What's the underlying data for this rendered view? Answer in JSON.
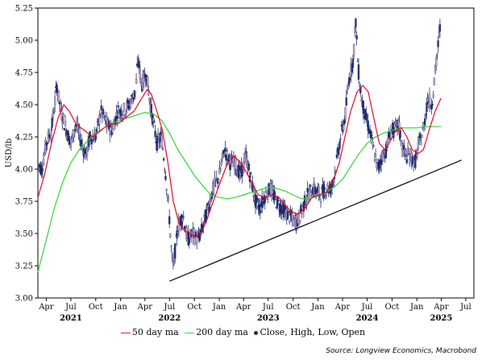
{
  "chart_data": {
    "type": "line",
    "ylabel": "USD/lb",
    "ylim": [
      3.0,
      5.25
    ],
    "yticks": [
      "3.00",
      "3.25",
      "3.50",
      "3.75",
      "4.00",
      "4.25",
      "4.50",
      "4.75",
      "5.00",
      "5.25"
    ],
    "xlim": [
      "2021-03-01",
      "2025-07-31"
    ],
    "xticks": [
      {
        "date": "2021-04-01",
        "label": "Apr"
      },
      {
        "date": "2021-07-01",
        "label": "Jul"
      },
      {
        "date": "2021-10-01",
        "label": "Oct"
      },
      {
        "date": "2022-01-01",
        "label": "Jan"
      },
      {
        "date": "2022-04-01",
        "label": "Apr"
      },
      {
        "date": "2022-07-01",
        "label": "Jul"
      },
      {
        "date": "2022-10-01",
        "label": "Oct"
      },
      {
        "date": "2023-01-01",
        "label": "Jan"
      },
      {
        "date": "2023-04-01",
        "label": "Apr"
      },
      {
        "date": "2023-07-01",
        "label": "Jul"
      },
      {
        "date": "2023-10-01",
        "label": "Oct"
      },
      {
        "date": "2024-01-01",
        "label": "Jan"
      },
      {
        "date": "2024-04-01",
        "label": "Apr"
      },
      {
        "date": "2024-07-01",
        "label": "Jul"
      },
      {
        "date": "2024-10-01",
        "label": "Oct"
      },
      {
        "date": "2025-01-01",
        "label": "Jan"
      },
      {
        "date": "2025-04-01",
        "label": "Apr"
      },
      {
        "date": "2025-07-01",
        "label": "Jul"
      }
    ],
    "years": [
      {
        "date": "2021-07-01",
        "label": "2021"
      },
      {
        "date": "2022-07-01",
        "label": "2022"
      },
      {
        "date": "2023-07-01",
        "label": "2023"
      },
      {
        "date": "2024-07-01",
        "label": "2024"
      },
      {
        "date": "2025-04-01",
        "label": "2025"
      }
    ],
    "price_path": [
      [
        "2021-03-01",
        4.05
      ],
      [
        "2021-03-15",
        4.0
      ],
      [
        "2021-04-01",
        4.2
      ],
      [
        "2021-04-20",
        4.3
      ],
      [
        "2021-05-10",
        4.65
      ],
      [
        "2021-05-25",
        4.45
      ],
      [
        "2021-06-15",
        4.3
      ],
      [
        "2021-07-01",
        4.2
      ],
      [
        "2021-07-20",
        4.35
      ],
      [
        "2021-08-10",
        4.2
      ],
      [
        "2021-08-25",
        4.1
      ],
      [
        "2021-09-10",
        4.25
      ],
      [
        "2021-10-01",
        4.25
      ],
      [
        "2021-10-20",
        4.45
      ],
      [
        "2021-11-10",
        4.35
      ],
      [
        "2021-12-01",
        4.3
      ],
      [
        "2021-12-20",
        4.45
      ],
      [
        "2022-01-10",
        4.45
      ],
      [
        "2022-02-01",
        4.5
      ],
      [
        "2022-02-25",
        4.6
      ],
      [
        "2022-03-07",
        4.85
      ],
      [
        "2022-03-20",
        4.65
      ],
      [
        "2022-04-05",
        4.75
      ],
      [
        "2022-04-25",
        4.45
      ],
      [
        "2022-05-15",
        4.2
      ],
      [
        "2022-06-01",
        4.25
      ],
      [
        "2022-06-15",
        4.0
      ],
      [
        "2022-06-28",
        3.7
      ],
      [
        "2022-07-10",
        3.3
      ],
      [
        "2022-07-15",
        3.25
      ],
      [
        "2022-08-01",
        3.55
      ],
      [
        "2022-08-20",
        3.65
      ],
      [
        "2022-09-05",
        3.45
      ],
      [
        "2022-09-25",
        3.5
      ],
      [
        "2022-10-15",
        3.45
      ],
      [
        "2022-11-01",
        3.55
      ],
      [
        "2022-11-20",
        3.7
      ],
      [
        "2022-12-10",
        3.85
      ],
      [
        "2023-01-01",
        3.95
      ],
      [
        "2023-01-20",
        4.15
      ],
      [
        "2023-02-10",
        4.05
      ],
      [
        "2023-03-01",
        4.05
      ],
      [
        "2023-03-20",
        3.95
      ],
      [
        "2023-04-10",
        4.1
      ],
      [
        "2023-04-25",
        3.95
      ],
      [
        "2023-05-15",
        3.75
      ],
      [
        "2023-06-01",
        3.7
      ],
      [
        "2023-06-20",
        3.8
      ],
      [
        "2023-07-10",
        3.85
      ],
      [
        "2023-07-30",
        3.75
      ],
      [
        "2023-08-20",
        3.7
      ],
      [
        "2023-09-10",
        3.65
      ],
      [
        "2023-10-01",
        3.6
      ],
      [
        "2023-10-20",
        3.6
      ],
      [
        "2023-11-05",
        3.7
      ],
      [
        "2023-11-25",
        3.8
      ],
      [
        "2023-12-15",
        3.85
      ],
      [
        "2024-01-10",
        3.8
      ],
      [
        "2024-01-30",
        3.85
      ],
      [
        "2024-02-20",
        3.85
      ],
      [
        "2024-03-10",
        4.05
      ],
      [
        "2024-03-25",
        4.25
      ],
      [
        "2024-04-10",
        4.4
      ],
      [
        "2024-04-25",
        4.7
      ],
      [
        "2024-05-10",
        4.85
      ],
      [
        "2024-05-20",
        5.15
      ],
      [
        "2024-05-28",
        4.8
      ],
      [
        "2024-06-10",
        4.55
      ],
      [
        "2024-06-25",
        4.4
      ],
      [
        "2024-07-10",
        4.3
      ],
      [
        "2024-07-25",
        4.15
      ],
      [
        "2024-08-10",
        4.0
      ],
      [
        "2024-08-25",
        4.1
      ],
      [
        "2024-09-10",
        4.15
      ],
      [
        "2024-09-25",
        4.3
      ],
      [
        "2024-10-10",
        4.3
      ],
      [
        "2024-10-25",
        4.35
      ],
      [
        "2024-11-10",
        4.15
      ],
      [
        "2024-11-25",
        4.1
      ],
      [
        "2024-12-10",
        4.1
      ],
      [
        "2024-12-25",
        4.05
      ],
      [
        "2025-01-10",
        4.2
      ],
      [
        "2025-01-25",
        4.3
      ],
      [
        "2025-02-10",
        4.55
      ],
      [
        "2025-02-25",
        4.5
      ],
      [
        "2025-03-10",
        4.75
      ],
      [
        "2025-03-20",
        4.95
      ],
      [
        "2025-03-28",
        5.1
      ]
    ],
    "series": [
      {
        "name": "50 day ma",
        "color": "#e8001c",
        "points": [
          [
            "2021-03-01",
            3.78
          ],
          [
            "2021-03-25",
            3.95
          ],
          [
            "2021-04-20",
            4.2
          ],
          [
            "2021-05-15",
            4.4
          ],
          [
            "2021-06-05",
            4.5
          ],
          [
            "2021-06-25",
            4.45
          ],
          [
            "2021-07-20",
            4.35
          ],
          [
            "2021-08-20",
            4.3
          ],
          [
            "2021-09-20",
            4.25
          ],
          [
            "2021-10-20",
            4.3
          ],
          [
            "2021-11-20",
            4.35
          ],
          [
            "2021-12-20",
            4.35
          ],
          [
            "2022-01-20",
            4.4
          ],
          [
            "2022-02-20",
            4.45
          ],
          [
            "2022-03-20",
            4.55
          ],
          [
            "2022-04-10",
            4.62
          ],
          [
            "2022-04-25",
            4.58
          ],
          [
            "2022-05-15",
            4.45
          ],
          [
            "2022-06-05",
            4.3
          ],
          [
            "2022-06-25",
            4.05
          ],
          [
            "2022-07-15",
            3.75
          ],
          [
            "2022-08-05",
            3.58
          ],
          [
            "2022-08-25",
            3.52
          ],
          [
            "2022-09-15",
            3.5
          ],
          [
            "2022-10-05",
            3.47
          ],
          [
            "2022-10-25",
            3.5
          ],
          [
            "2022-11-15",
            3.6
          ],
          [
            "2022-12-10",
            3.75
          ],
          [
            "2023-01-05",
            3.9
          ],
          [
            "2023-02-01",
            4.05
          ],
          [
            "2023-02-25",
            4.1
          ],
          [
            "2023-03-20",
            4.05
          ],
          [
            "2023-04-10",
            3.98
          ],
          [
            "2023-05-01",
            3.9
          ],
          [
            "2023-05-25",
            3.8
          ],
          [
            "2023-06-20",
            3.78
          ],
          [
            "2023-07-15",
            3.8
          ],
          [
            "2023-08-10",
            3.78
          ],
          [
            "2023-09-01",
            3.72
          ],
          [
            "2023-09-25",
            3.67
          ],
          [
            "2023-10-20",
            3.65
          ],
          [
            "2023-11-15",
            3.7
          ],
          [
            "2023-12-10",
            3.78
          ],
          [
            "2024-01-05",
            3.8
          ],
          [
            "2024-02-01",
            3.82
          ],
          [
            "2024-02-25",
            3.9
          ],
          [
            "2024-03-20",
            4.05
          ],
          [
            "2024-04-10",
            4.25
          ],
          [
            "2024-05-01",
            4.45
          ],
          [
            "2024-05-25",
            4.6
          ],
          [
            "2024-06-15",
            4.65
          ],
          [
            "2024-07-05",
            4.6
          ],
          [
            "2024-07-25",
            4.4
          ],
          [
            "2024-08-15",
            4.2
          ],
          [
            "2024-09-05",
            4.15
          ],
          [
            "2024-09-25",
            4.22
          ],
          [
            "2024-10-15",
            4.3
          ],
          [
            "2024-11-05",
            4.32
          ],
          [
            "2024-11-25",
            4.25
          ],
          [
            "2024-12-15",
            4.15
          ],
          [
            "2025-01-05",
            4.12
          ],
          [
            "2025-01-25",
            4.15
          ],
          [
            "2025-02-15",
            4.3
          ],
          [
            "2025-03-10",
            4.45
          ],
          [
            "2025-03-31",
            4.55
          ]
        ]
      },
      {
        "name": "200 day ma",
        "color": "#2dd32d",
        "points": [
          [
            "2021-03-01",
            3.2
          ],
          [
            "2021-04-01",
            3.45
          ],
          [
            "2021-05-01",
            3.7
          ],
          [
            "2021-06-01",
            3.9
          ],
          [
            "2021-07-01",
            4.05
          ],
          [
            "2021-08-01",
            4.15
          ],
          [
            "2021-09-01",
            4.22
          ],
          [
            "2021-10-01",
            4.28
          ],
          [
            "2021-11-01",
            4.32
          ],
          [
            "2021-12-01",
            4.36
          ],
          [
            "2022-01-01",
            4.38
          ],
          [
            "2022-02-01",
            4.4
          ],
          [
            "2022-03-01",
            4.42
          ],
          [
            "2022-04-01",
            4.44
          ],
          [
            "2022-05-01",
            4.43
          ],
          [
            "2022-06-01",
            4.38
          ],
          [
            "2022-07-01",
            4.28
          ],
          [
            "2022-08-01",
            4.15
          ],
          [
            "2022-09-01",
            4.05
          ],
          [
            "2022-10-01",
            3.95
          ],
          [
            "2022-11-01",
            3.87
          ],
          [
            "2022-12-01",
            3.8
          ],
          [
            "2023-01-01",
            3.78
          ],
          [
            "2023-02-01",
            3.77
          ],
          [
            "2023-03-01",
            3.78
          ],
          [
            "2023-04-01",
            3.8
          ],
          [
            "2023-05-01",
            3.82
          ],
          [
            "2023-06-01",
            3.84
          ],
          [
            "2023-07-01",
            3.86
          ],
          [
            "2023-08-01",
            3.85
          ],
          [
            "2023-09-01",
            3.83
          ],
          [
            "2023-10-01",
            3.8
          ],
          [
            "2023-11-01",
            3.77
          ],
          [
            "2023-12-01",
            3.77
          ],
          [
            "2024-01-01",
            3.79
          ],
          [
            "2024-02-01",
            3.82
          ],
          [
            "2024-03-01",
            3.86
          ],
          [
            "2024-04-01",
            3.92
          ],
          [
            "2024-05-01",
            4.02
          ],
          [
            "2024-06-01",
            4.12
          ],
          [
            "2024-07-01",
            4.2
          ],
          [
            "2024-08-01",
            4.25
          ],
          [
            "2024-09-01",
            4.28
          ],
          [
            "2024-10-01",
            4.3
          ],
          [
            "2024-11-01",
            4.32
          ],
          [
            "2024-12-01",
            4.32
          ],
          [
            "2025-01-01",
            4.32
          ],
          [
            "2025-02-01",
            4.33
          ],
          [
            "2025-03-01",
            4.33
          ],
          [
            "2025-04-01",
            4.33
          ]
        ]
      }
    ],
    "candles_series_name": "Close, High, Low, Open",
    "candle_color": "#1f2a6b",
    "trendline": {
      "start": [
        "2022-07-01",
        3.13
      ],
      "end": [
        "2025-06-15",
        4.07
      ],
      "color": "#000000"
    },
    "legend": [
      {
        "label": "50 day ma",
        "kind": "line",
        "color": "#e8001c"
      },
      {
        "label": "200 day ma",
        "kind": "line",
        "color": "#2dd32d"
      },
      {
        "label": "Close, High, Low, Open",
        "kind": "dot",
        "color": "#1f2a6b"
      }
    ],
    "legend_position": "bottom",
    "grid": false,
    "source": "Source: Longview Economics, Macrobond"
  }
}
